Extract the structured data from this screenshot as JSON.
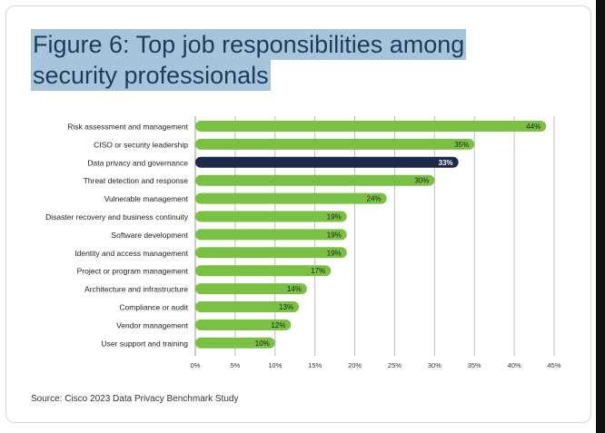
{
  "title_line1": "Figure 6: Top job responsibilities among",
  "title_line2": "security professionals",
  "source": "Source: Cisco 2023 Data Privacy Benchmark Study",
  "colors": {
    "bar": "#7ac143",
    "highlight": "#1b2a49",
    "title_highlight": "#a6c5dd"
  },
  "chart_data": {
    "type": "bar",
    "orientation": "horizontal",
    "categories": [
      "Risk assessment and management",
      "CISO or security leadership",
      "Data privacy and governance",
      "Threat detection and response",
      "Vulnerable management",
      "Disaster recovery and business continuity",
      "Software development",
      "Identity and access management",
      "Project or program management",
      "Architecture and infrastructure",
      "Compliance or audit",
      "Vendor management",
      "User support and training"
    ],
    "values": [
      44,
      35,
      33,
      30,
      24,
      19,
      19,
      19,
      17,
      14,
      13,
      12,
      10
    ],
    "data_labels": [
      "44%",
      "35%",
      "33%",
      "30%",
      "24%",
      "19%",
      "19%",
      "19%",
      "17%",
      "14%",
      "13%",
      "12%",
      "10%"
    ],
    "highlight_index": 2,
    "xlim": [
      0,
      45
    ],
    "xticks": [
      0,
      5,
      10,
      15,
      20,
      25,
      30,
      35,
      40,
      45
    ],
    "xtick_labels": [
      "0%",
      "5%",
      "10%",
      "15%",
      "20%",
      "25%",
      "30%",
      "35%",
      "40%",
      "45%"
    ],
    "grid": true
  }
}
